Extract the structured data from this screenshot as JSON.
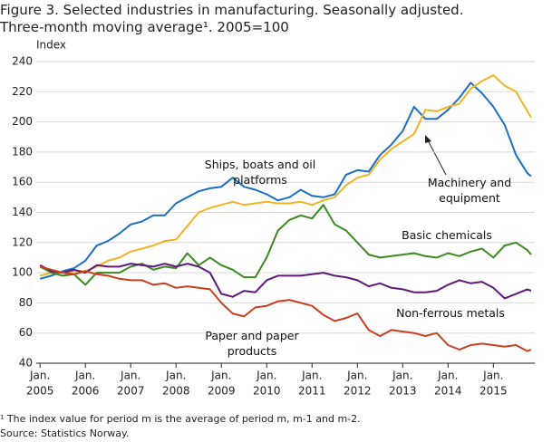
{
  "chart_data": {
    "type": "line",
    "title": "Figure 3. Selected industries in manufacturing. Seasonally adjusted.",
    "subtitle": "Three-month moving average¹. 2005=100",
    "y_label": "Index",
    "footnote": "¹ The index value for period m is the average of period m, m-1 and m-2.",
    "source": "Source: Statistics Norway.",
    "x": [
      "2005-01",
      "2005-04",
      "2005-07",
      "2005-10",
      "2006-01",
      "2006-04",
      "2006-07",
      "2006-10",
      "2007-01",
      "2007-04",
      "2007-07",
      "2007-10",
      "2008-01",
      "2008-04",
      "2008-07",
      "2008-10",
      "2009-01",
      "2009-04",
      "2009-07",
      "2009-10",
      "2010-01",
      "2010-04",
      "2010-07",
      "2010-10",
      "2011-01",
      "2011-04",
      "2011-07",
      "2011-10",
      "2012-01",
      "2012-04",
      "2012-07",
      "2012-10",
      "2013-01",
      "2013-04",
      "2013-07",
      "2013-10",
      "2014-01",
      "2014-04",
      "2014-07",
      "2014-10",
      "2015-01",
      "2015-04",
      "2015-07",
      "2015-10",
      "2015-11"
    ],
    "xlim": [
      "2004-12",
      "2015-11"
    ],
    "xticks": [
      {
        "value": "2005-01",
        "label": [
          "Jan.",
          "2005"
        ]
      },
      {
        "value": "2006-01",
        "label": [
          "Jan.",
          "2006"
        ]
      },
      {
        "value": "2007-01",
        "label": [
          "Jan.",
          "2007"
        ]
      },
      {
        "value": "2008-01",
        "label": [
          "Jan.",
          "2008"
        ]
      },
      {
        "value": "2009-01",
        "label": [
          "Jan.",
          "2009"
        ]
      },
      {
        "value": "2010-01",
        "label": [
          "Jan.",
          "2010"
        ]
      },
      {
        "value": "2011-01",
        "label": [
          "Jan.",
          "2011"
        ]
      },
      {
        "value": "2012-01",
        "label": [
          "Jan.",
          "2012"
        ]
      },
      {
        "value": "2013-01",
        "label": [
          "Jan.",
          "2013"
        ]
      },
      {
        "value": "2014-01",
        "label": [
          "Jan.",
          "2014"
        ]
      },
      {
        "value": "2015-01",
        "label": [
          "Jan.",
          "2015"
        ]
      }
    ],
    "ylim": [
      40,
      240
    ],
    "yticks": [
      40,
      60,
      80,
      100,
      120,
      140,
      160,
      180,
      200,
      220,
      240
    ],
    "grid": true,
    "series": [
      {
        "name": "Ships, boats and oil platforms",
        "color": "#1a6fc4",
        "values": [
          96,
          98,
          101,
          103,
          108,
          118,
          121,
          126,
          132,
          134,
          138,
          138,
          146,
          150,
          154,
          156,
          157,
          163,
          157,
          155,
          152,
          148,
          150,
          155,
          151,
          150,
          152,
          165,
          168,
          167,
          178,
          185,
          194,
          210,
          202,
          202,
          208,
          216,
          226,
          219,
          210,
          198,
          178,
          166,
          164
        ]
      },
      {
        "name": "Machinery and equipment",
        "color": "#f0b323",
        "values": [
          98,
          100,
          100,
          101,
          101,
          104,
          108,
          110,
          114,
          116,
          118,
          121,
          122,
          131,
          140,
          143,
          145,
          147,
          145,
          146,
          147,
          146,
          146,
          147,
          145,
          148,
          150,
          158,
          163,
          165,
          175,
          182,
          187,
          192,
          208,
          207,
          210,
          212,
          222,
          227,
          231,
          224,
          220,
          207,
          203
        ]
      },
      {
        "name": "Basic chemicals",
        "color": "#3a8a1f",
        "values": [
          104,
          100,
          98,
          99,
          92,
          100,
          100,
          100,
          104,
          106,
          102,
          104,
          103,
          113,
          105,
          110,
          105,
          102,
          97,
          97,
          110,
          128,
          135,
          138,
          136,
          145,
          132,
          128,
          120,
          112,
          110,
          111,
          112,
          113,
          111,
          110,
          113,
          111,
          114,
          116,
          110,
          118,
          120,
          115,
          112
        ]
      },
      {
        "name": "Non-ferrous metals",
        "color": "#62187a",
        "values": [
          105,
          101,
          100,
          102,
          100,
          105,
          104,
          104,
          106,
          105,
          104,
          106,
          104,
          106,
          104,
          100,
          86,
          84,
          88,
          87,
          95,
          98,
          98,
          98,
          99,
          100,
          98,
          97,
          95,
          91,
          93,
          90,
          89,
          87,
          87,
          88,
          92,
          95,
          93,
          94,
          90,
          83,
          86,
          89,
          88
        ]
      },
      {
        "name": "Paper and paper products",
        "color": "#c8401e",
        "values": [
          104,
          102,
          100,
          99,
          101,
          99,
          98,
          96,
          95,
          95,
          92,
          93,
          90,
          91,
          90,
          89,
          80,
          73,
          71,
          77,
          78,
          81,
          82,
          80,
          78,
          72,
          68,
          70,
          73,
          62,
          58,
          62,
          61,
          60,
          58,
          60,
          52,
          49,
          52,
          53,
          52,
          51,
          52,
          48,
          49
        ]
      }
    ]
  }
}
